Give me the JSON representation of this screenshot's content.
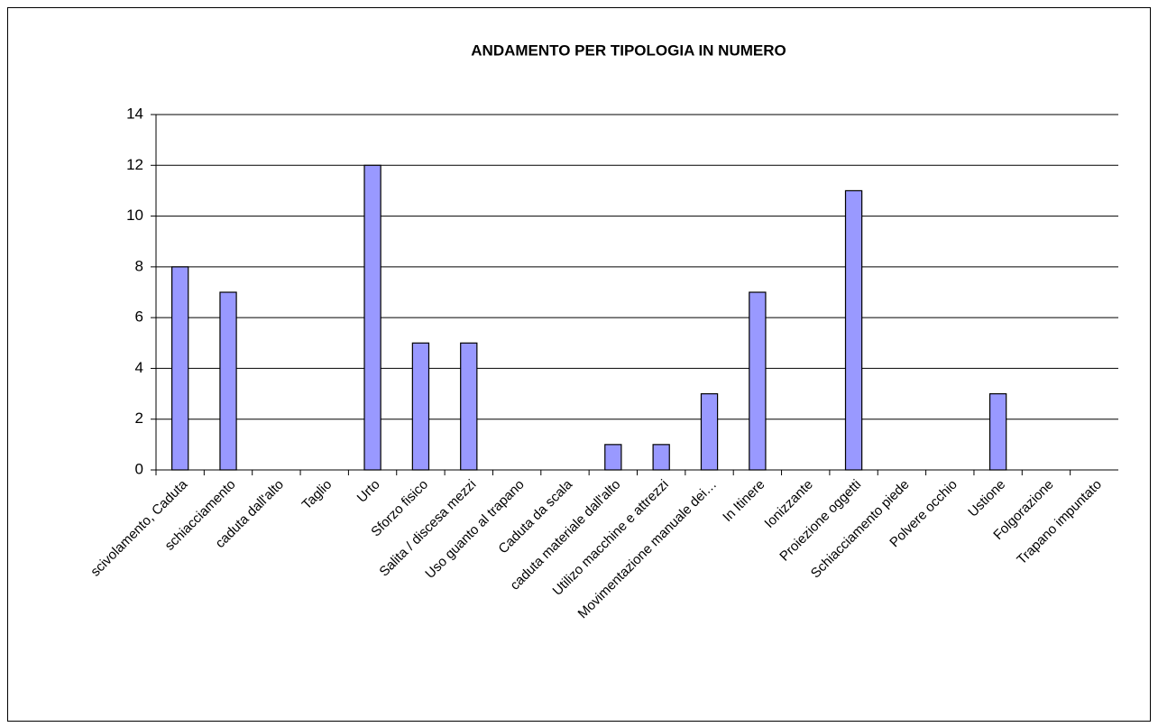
{
  "chart_data": {
    "type": "bar",
    "title": "ANDAMENTO PER TIPOLOGIA IN NUMERO",
    "categories": [
      "scivolamento, Caduta",
      "schiacciamento",
      "caduta dall'alto",
      "Taglio",
      "Urto",
      "Sforzo fisico",
      "Salita / discesa mezzi",
      "Uso guanto al trapano",
      "Caduta da scala",
      "caduta materiale dall'alto",
      "Utilizo macchine e attrezzi",
      "Movimentazione manuale dei…",
      "In Itinere",
      "Ionizzante",
      "Proiezione oggetti",
      "Schiacciamento piede",
      "Polvere occhio",
      "Ustione",
      "Folgorazione",
      "Trapano impuntato"
    ],
    "values": [
      8,
      7,
      0,
      0,
      12,
      5,
      5,
      0,
      0,
      1,
      1,
      3,
      7,
      0,
      11,
      0,
      0,
      3,
      0,
      0
    ],
    "color": "#9999ff",
    "ylim": [
      0,
      14
    ],
    "yticks": [
      0,
      2,
      4,
      6,
      8,
      10,
      12,
      14
    ],
    "grid": true
  }
}
